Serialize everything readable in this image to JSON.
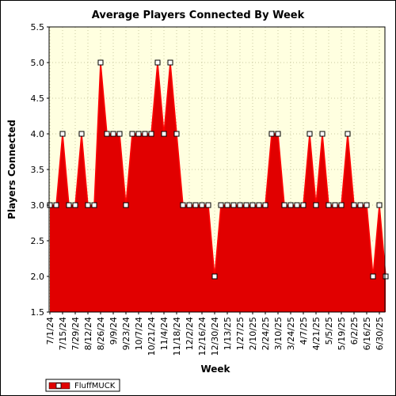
{
  "chart_data": {
    "type": "area",
    "title": "Average Players Connected By Week",
    "xlabel": "Week",
    "ylabel": "Players Connected",
    "ylim": [
      1.5,
      5.5
    ],
    "yticks": [
      "1.5",
      "2.0",
      "2.5",
      "3.0",
      "3.5",
      "4.0",
      "4.5",
      "5.0",
      "5.5"
    ],
    "grid": true,
    "legend_position": "bottom-left",
    "x_tick_labels": [
      "7/1/24",
      "7/15/24",
      "7/29/24",
      "8/12/24",
      "8/26/24",
      "9/9/24",
      "9/23/24",
      "10/7/24",
      "10/21/24",
      "11/4/24",
      "11/18/24",
      "12/2/24",
      "12/16/24",
      "12/30/24",
      "1/13/25",
      "1/27/25",
      "2/10/25",
      "2/24/25",
      "3/10/25",
      "3/24/25",
      "4/7/25",
      "4/21/25",
      "5/5/25",
      "5/19/25",
      "6/2/25",
      "6/16/25",
      "6/30/25"
    ],
    "series": [
      {
        "name": "FluffMUCK",
        "color": "#ff0000",
        "fill": "#e10000",
        "values": [
          3,
          3,
          4,
          3,
          3,
          4,
          3,
          3,
          5,
          4,
          4,
          4,
          3,
          4,
          4,
          4,
          4,
          5,
          4,
          5,
          4,
          3,
          3,
          3,
          3,
          3,
          2,
          3,
          3,
          3,
          3,
          3,
          3,
          3,
          3,
          4,
          4,
          3,
          3,
          3,
          3,
          4,
          3,
          4,
          3,
          3,
          3,
          4,
          3,
          3,
          3,
          2,
          3,
          2
        ]
      }
    ]
  },
  "colors": {
    "plot_background": "#ffffe0",
    "grid": "#c8c8a0"
  }
}
